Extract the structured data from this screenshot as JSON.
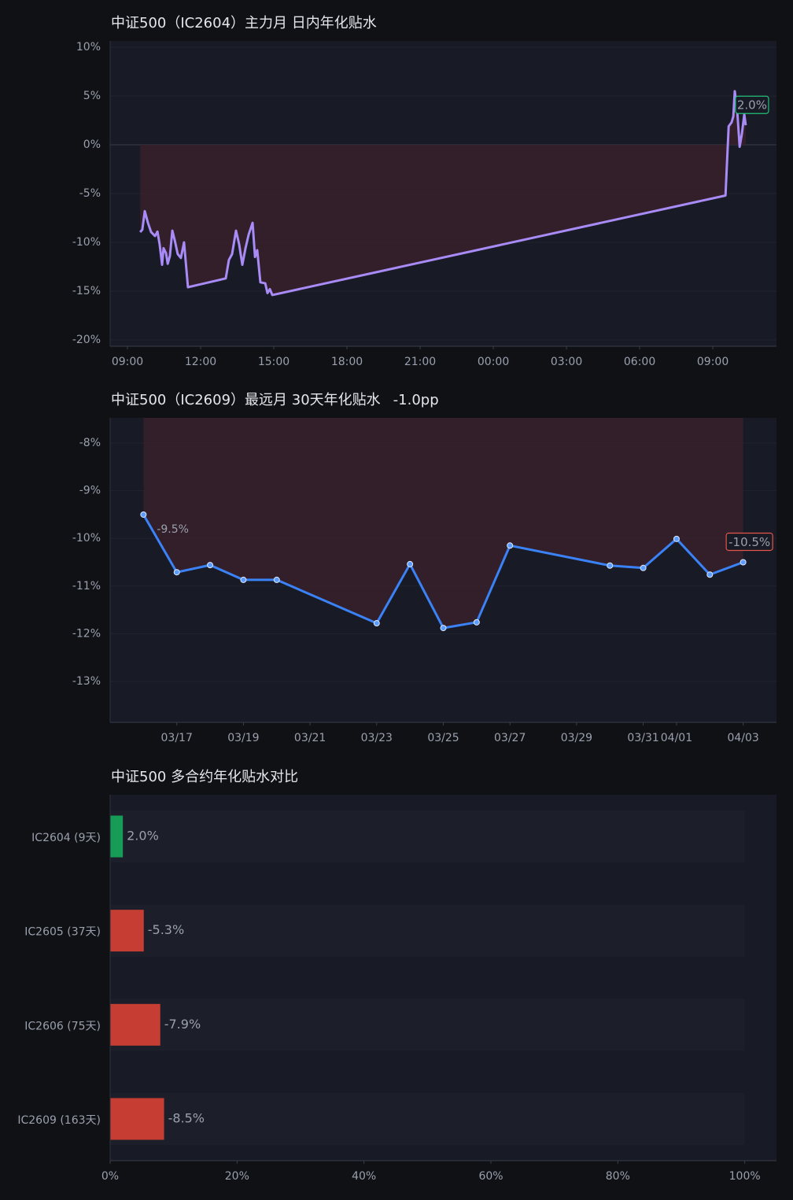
{
  "chart_data": [
    {
      "type": "line",
      "title": "中证500（IC2604）主力月 日内年化贴水",
      "color": "#a98bf7",
      "area_color": "#35202a",
      "label_color": "#22c07a",
      "markers": false,
      "grid": true,
      "x": [
        9.52,
        9.61,
        9.71,
        9.84,
        9.97,
        10.13,
        10.23,
        10.32,
        10.42,
        10.48,
        10.58,
        10.65,
        10.74,
        10.84,
        10.94,
        11.06,
        11.19,
        11.32,
        11.48,
        13.03,
        13.16,
        13.29,
        13.45,
        13.58,
        13.71,
        13.84,
        13.97,
        14.13,
        14.23,
        14.32,
        14.45,
        14.65,
        14.74,
        14.84,
        14.94,
        33.52,
        33.65,
        33.77,
        33.84,
        33.9,
        34.0,
        34.1,
        34.19,
        34.29,
        34.35
      ],
      "values": [
        -8.95,
        -8.7,
        -6.8,
        -8.0,
        -8.95,
        -9.35,
        -8.9,
        -10.2,
        -12.3,
        -10.6,
        -11.1,
        -12.2,
        -11.4,
        -8.8,
        -9.8,
        -11.2,
        -11.6,
        -10.0,
        -14.6,
        -13.7,
        -11.8,
        -11.2,
        -8.8,
        -10.2,
        -12.3,
        -10.6,
        -9.2,
        -8.0,
        -11.5,
        -10.8,
        -14.1,
        -14.2,
        -15.2,
        -14.8,
        -15.4,
        -5.2,
        1.9,
        2.3,
        2.9,
        5.5,
        3.5,
        -0.2,
        1.1,
        3.1,
        2.0
      ],
      "value_labels": [
        null,
        null,
        null,
        null,
        null,
        null,
        null,
        null,
        null,
        null,
        null,
        null,
        null,
        null,
        null,
        null,
        null,
        null,
        null,
        null,
        null,
        null,
        null,
        null,
        null,
        null,
        null,
        null,
        null,
        null,
        null,
        null,
        null,
        null,
        null,
        null,
        null,
        null,
        null,
        null,
        null,
        null,
        null,
        null,
        "2.0%"
      ],
      "xlim": [
        8.29,
        35.61
      ],
      "xticks": [
        {
          "value": 9,
          "label": "09:00"
        },
        {
          "value": 12,
          "label": "12:00"
        },
        {
          "value": 15,
          "label": "15:00"
        },
        {
          "value": 18,
          "label": "18:00"
        },
        {
          "value": 21,
          "label": "21:00"
        },
        {
          "value": 24,
          "label": "00:00"
        },
        {
          "value": 27,
          "label": "03:00"
        },
        {
          "value": 30,
          "label": "06:00"
        },
        {
          "value": 33,
          "label": "09:00"
        }
      ],
      "ylim": [
        -20.65,
        10.65
      ],
      "yticks": [
        {
          "value": 10,
          "label": "10%"
        },
        {
          "value": 5,
          "label": "5%"
        },
        {
          "value": 0,
          "label": "0%"
        },
        {
          "value": -5,
          "label": "-5%"
        },
        {
          "value": -10,
          "label": "-10%"
        },
        {
          "value": -15,
          "label": "-15%"
        },
        {
          "value": -20,
          "label": "-20%"
        }
      ]
    },
    {
      "type": "line",
      "title": "中证500（IC2609）最远月 30天年化贴水",
      "change": "-1.0pp",
      "color": "#3b82f6",
      "area_color": "#35202a",
      "label_color": "#e5534b",
      "markers": true,
      "grid": true,
      "x": [
        "03/16",
        "03/17",
        "03/18",
        "03/19",
        "03/20",
        "03/23",
        "03/24",
        "03/25",
        "03/26",
        "03/27",
        "03/30",
        "03/31",
        "04/01",
        "04/02",
        "04/03"
      ],
      "values": [
        -9.5,
        -10.71,
        -10.56,
        -10.87,
        -10.87,
        -11.78,
        -10.54,
        -11.88,
        -11.76,
        -10.15,
        -10.57,
        -10.62,
        -10.01,
        -10.76,
        -10.5
      ],
      "value_labels": [
        "-9.5%",
        null,
        null,
        null,
        null,
        null,
        null,
        null,
        null,
        null,
        null,
        null,
        null,
        null,
        "-10.5%"
      ],
      "xlim": [
        "03/15",
        "04/04"
      ],
      "xticks": [
        "03/17",
        "03/19",
        "03/21",
        "03/23",
        "03/25",
        "03/27",
        "03/29",
        "03/31",
        "04/01",
        "04/03"
      ],
      "ylim": [
        -13.86,
        -7.47
      ],
      "yticks": [
        {
          "value": -8,
          "label": "-8%"
        },
        {
          "value": -9,
          "label": "-9%"
        },
        {
          "value": -10,
          "label": "-10%"
        },
        {
          "value": -11,
          "label": "-11%"
        },
        {
          "value": -12,
          "label": "-12%"
        },
        {
          "value": -13,
          "label": "-13%"
        }
      ]
    },
    {
      "type": "hbar",
      "title": "中证500 多合约年化贴水对比",
      "categories": [
        "IC2604 (9天)",
        "IC2605 (37天)",
        "IC2606 (75天)",
        "IC2609 (163天)"
      ],
      "values": [
        2.0,
        -5.3,
        -7.9,
        -8.5
      ],
      "value_labels": [
        "2.0%",
        "-5.3%",
        "-7.9%",
        "-8.5%"
      ],
      "colors": [
        "#179c58",
        "#c53d33",
        "#c53d33",
        "#c53d33"
      ],
      "grid": false,
      "xlim": [
        0,
        105
      ],
      "xticks": [
        {
          "value": 0,
          "label": "0%"
        },
        {
          "value": 20,
          "label": "20%"
        },
        {
          "value": 40,
          "label": "40%"
        },
        {
          "value": 60,
          "label": "60%"
        },
        {
          "value": 80,
          "label": "80%"
        },
        {
          "value": 100,
          "label": "100%"
        }
      ]
    }
  ]
}
